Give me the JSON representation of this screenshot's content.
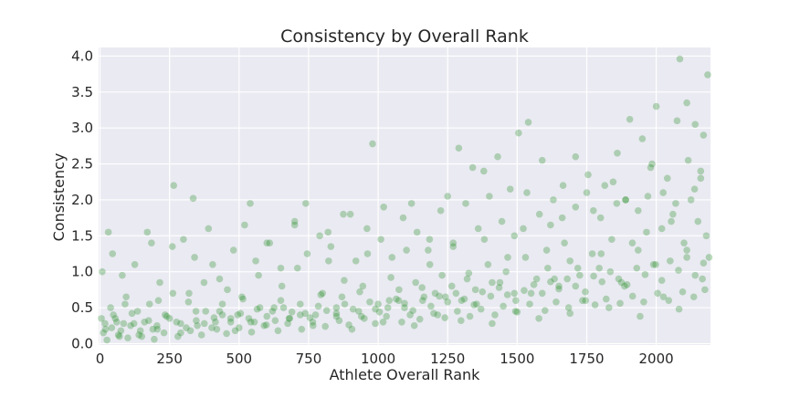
{
  "chart_data": {
    "type": "scatter",
    "title": "Consistency by Overall Rank",
    "xlabel": "Athlete Overall Rank",
    "ylabel": "Consistency",
    "xlim": [
      -5,
      2195
    ],
    "ylim": [
      -0.02,
      4.12
    ],
    "xticks": [
      0,
      250,
      500,
      750,
      1000,
      1250,
      1500,
      1750,
      2000
    ],
    "yticks": [
      0.0,
      0.5,
      1.0,
      1.5,
      2.0,
      2.5,
      3.0,
      3.5,
      4.0
    ],
    "xtick_labels": [
      "0",
      "250",
      "500",
      "750",
      "1000",
      "1250",
      "1500",
      "1750",
      "2000"
    ],
    "ytick_labels": [
      "0.0",
      "0.5",
      "1.0",
      "1.5",
      "2.0",
      "2.5",
      "3.0",
      "3.5",
      "4.0"
    ],
    "grid": true,
    "background": "#EAEAF2",
    "grid_color": "#FFFFFF",
    "marker_color": "#228B22",
    "marker_alpha": 0.3,
    "series": [
      {
        "x": [
          5,
          18,
          30,
          42,
          48,
          60,
          75,
          90,
          110,
          135,
          160,
          185,
          190,
          210,
          250,
          265,
          290,
          320,
          335,
          350,
          380,
          405,
          415,
          440,
          470,
          495,
          510,
          540,
          555,
          575,
          600,
          620,
          650,
          680,
          700,
          720,
          740,
          775,
          800,
          820,
          850,
          870,
          900,
          930,
          945,
          980,
          1000,
          1020,
          1040,
          1075,
          1095,
          1120,
          1135,
          1165,
          1185,
          1205,
          1230,
          1250,
          1265,
          1290,
          1300,
          1320,
          1340,
          1350,
          1380,
          1395,
          1410,
          1430,
          1460,
          1475,
          1490,
          1505,
          1530,
          1540,
          1570,
          1590,
          1610,
          1630,
          1650,
          1670,
          1690,
          1710,
          1725,
          1750,
          1770,
          1795,
          1815,
          1840,
          1860,
          1875,
          1890,
          1905,
          1935,
          1950,
          1965,
          1985,
          2000,
          2020,
          2040,
          2060,
          2075,
          2085,
          2100,
          2110,
          2125,
          2140,
          2150,
          2160,
          2170,
          2180,
          2185,
          2190,
          20,
          55,
          85,
          115,
          145,
          175,
          205,
          240,
          275,
          310,
          345,
          375,
          410,
          440,
          470,
          505,
          535,
          565,
          600,
          630,
          660,
          690,
          720,
          755,
          785,
          815,
          850,
          880,
          910,
          940,
          970,
          1005,
          1035,
          1065,
          1095,
          1125,
          1160,
          1190,
          1220,
          1250,
          1280,
          1310,
          1345,
          1375,
          1405,
          1435,
          1465,
          1495,
          1525,
          1560,
          1590,
          1620,
          1650,
          1680,
          1710,
          1745,
          1775,
          1805,
          1835,
          1865,
          1895,
          1930,
          1960,
          1990,
          2020,
          2050,
          2080,
          2110,
          2140,
          2170,
          12,
          38,
          66,
          94,
          122,
          150,
          178,
          206,
          234,
          262,
          290,
          318,
          346,
          374,
          402,
          430,
          458,
          486,
          514,
          542,
          570,
          598,
          626,
          654,
          682,
          710,
          738,
          766,
          794,
          822,
          850,
          878,
          906,
          934,
          962,
          990,
          1018,
          1046,
          1074,
          1102,
          1130,
          1158,
          1186,
          1214,
          1242,
          1270,
          1298,
          1326,
          1354,
          1382,
          1410,
          1438,
          1466,
          1494,
          1522,
          1550,
          1578,
          1606,
          1634,
          1662,
          1690,
          1718,
          1746,
          1774,
          1802,
          1830,
          1858,
          1886,
          1914,
          1942,
          1970,
          1998,
          2026,
          2054,
          2082,
          2110,
          2138,
          2166,
          8,
          45,
          80,
          125,
          170,
          215,
          260,
          300,
          340,
          390,
          430,
          480,
          520,
          560,
          610,
          650,
          700,
          745,
          790,
          830,
          875,
          920,
          960,
          1010,
          1050,
          1090,
          1140,
          1180,
          1225,
          1270,
          1315,
          1360,
          1400,
          1445,
          1490,
          1535,
          1580,
          1620,
          1665,
          1710,
          1755,
          1800,
          1845,
          1890,
          1935,
          1980,
          2025,
          2070,
          2115,
          2160,
          25,
          70,
          100,
          140,
          195,
          230,
          280,
          325,
          365,
          420,
          455,
          500,
          545,
          590,
          640,
          675,
          725,
          765,
          810,
          860,
          895,
          950,
          990,
          1030,
          1085,
          1115,
          1150,
          1200,
          1240,
          1285,
          1330,
          1370,
          1420,
          1450,
          1500,
          1545,
          1600,
          1640,
          1685,
          1735,
          1780,
          1820,
          1870,
          1915,
          1955,
          2005,
          2045,
          2095,
          2135,
          2175
        ],
        "y": [
          0.35,
          0.28,
          1.55,
          0.22,
          0.4,
          0.3,
          0.18,
          0.55,
          0.25,
          0.45,
          0.3,
          1.4,
          0.2,
          0.6,
          0.35,
          2.2,
          0.28,
          0.7,
          2.02,
          0.25,
          0.45,
          1.1,
          0.3,
          0.55,
          0.35,
          0.4,
          0.65,
          1.95,
          0.3,
          0.5,
          1.4,
          0.45,
          0.6,
          0.35,
          1.65,
          0.55,
          1.95,
          0.4,
          0.7,
          1.55,
          0.5,
          0.65,
          1.8,
          0.45,
          0.8,
          2.78,
          0.55,
          1.9,
          0.6,
          0.75,
          0.5,
          1.95,
          0.85,
          0.65,
          1.45,
          0.7,
          0.95,
          2.05,
          0.8,
          2.72,
          0.6,
          0.9,
          2.45,
          0.75,
          2.4,
          1.1,
          0.85,
          2.6,
          1.0,
          2.15,
          0.7,
          2.93,
          1.2,
          3.08,
          0.9,
          2.55,
          1.05,
          2.0,
          0.8,
          1.4,
          1.15,
          2.6,
          0.95,
          2.1,
          1.25,
          1.05,
          2.2,
          1.45,
          2.65,
          0.85,
          2.0,
          3.12,
          1.3,
          2.85,
          1.55,
          2.5,
          3.3,
          1.6,
          2.3,
          1.8,
          3.1,
          3.96,
          1.4,
          3.35,
          2.0,
          3.05,
          1.7,
          2.4,
          2.9,
          1.5,
          3.74,
          1.2,
          0.2,
          0.35,
          0.28,
          0.42,
          0.18,
          0.32,
          0.25,
          0.38,
          0.3,
          0.22,
          0.45,
          0.28,
          0.36,
          0.4,
          0.3,
          0.42,
          0.35,
          0.48,
          0.38,
          0.32,
          0.5,
          0.44,
          0.4,
          0.36,
          0.52,
          0.46,
          0.42,
          0.55,
          0.48,
          0.38,
          0.58,
          0.44,
          0.5,
          0.62,
          0.56,
          0.46,
          0.6,
          0.52,
          0.66,
          0.58,
          0.7,
          0.62,
          0.54,
          0.72,
          0.66,
          0.78,
          0.68,
          0.6,
          0.74,
          0.82,
          0.7,
          0.86,
          0.76,
          0.9,
          0.8,
          0.72,
          0.94,
          0.86,
          1.0,
          0.9,
          0.82,
          1.05,
          0.96,
          1.1,
          0.88,
          1.15,
          1.02,
          1.2,
          0.95,
          1.12,
          0.15,
          0.5,
          0.12,
          0.65,
          0.28,
          0.1,
          0.55,
          0.2,
          0.4,
          0.7,
          0.15,
          0.58,
          0.32,
          0.85,
          0.22,
          0.45,
          0.75,
          0.18,
          0.62,
          0.3,
          0.95,
          0.26,
          0.5,
          0.8,
          0.35,
          1.05,
          0.42,
          0.25,
          0.68,
          1.15,
          0.38,
          0.88,
          0.2,
          0.72,
          1.25,
          0.48,
          0.3,
          0.92,
          0.6,
          1.3,
          0.25,
          0.78,
          1.1,
          0.4,
          0.65,
          1.35,
          0.32,
          0.98,
          0.55,
          1.45,
          0.28,
          0.85,
          1.2,
          0.45,
          1.6,
          0.7,
          0.35,
          1.3,
          0.9,
          1.75,
          0.42,
          1.05,
          0.6,
          1.85,
          1.25,
          0.5,
          1.95,
          0.8,
          1.4,
          0.38,
          2.05,
          1.1,
          0.65,
          1.7,
          0.48,
          1.3,
          2.15,
          0.9,
          1.0,
          1.25,
          0.95,
          1.1,
          1.55,
          0.85,
          1.35,
          1.45,
          1.2,
          1.6,
          0.9,
          1.3,
          1.65,
          1.15,
          1.4,
          1.05,
          1.7,
          1.25,
          1.5,
          1.35,
          1.8,
          1.15,
          1.6,
          1.45,
          1.2,
          1.75,
          1.55,
          1.3,
          1.85,
          1.4,
          1.95,
          1.6,
          2.05,
          1.7,
          1.5,
          2.1,
          1.8,
          1.65,
          2.2,
          1.9,
          2.35,
          1.75,
          2.25,
          2.0,
          1.85,
          2.45,
          2.1,
          1.95,
          2.55,
          2.3,
          0.05,
          0.1,
          0.08,
          0.12,
          0.06,
          0.15,
          0.1,
          0.18,
          0.12,
          0.2,
          0.14,
          0.22,
          0.16,
          0.25,
          0.18,
          0.28,
          0.2,
          0.3,
          0.24,
          0.32,
          0.26,
          0.35,
          0.28,
          0.38,
          0.3,
          0.4,
          0.34,
          0.42,
          0.36,
          0.45,
          0.38,
          0.48,
          0.4,
          0.52,
          0.44,
          0.55,
          0.46,
          0.58,
          0.5,
          0.6,
          0.54,
          0.62,
          0.56,
          0.66,
          0.58,
          0.7,
          0.6,
          0.72,
          0.65,
          0.75
        ]
      }
    ]
  }
}
